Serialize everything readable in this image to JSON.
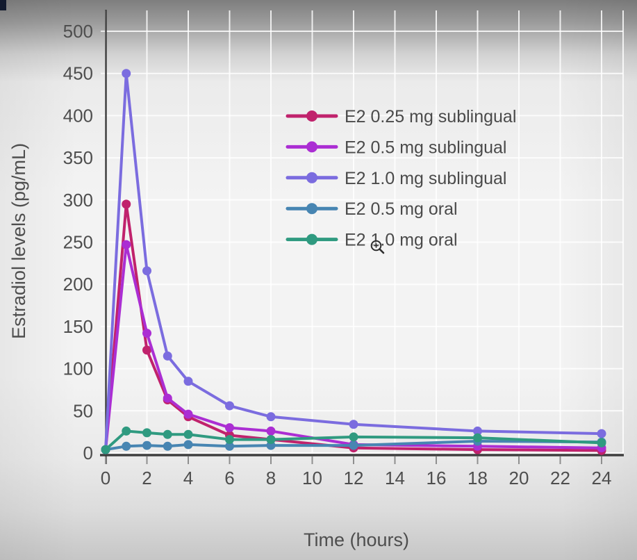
{
  "chart_data": {
    "type": "line",
    "title": "",
    "xlabel": "Time (hours)",
    "ylabel": "Estradiol levels (pg/mL)",
    "x": [
      0,
      1,
      2,
      3,
      4,
      6,
      8,
      12,
      18,
      24
    ],
    "x_ticks": [
      0,
      2,
      4,
      6,
      8,
      10,
      12,
      14,
      16,
      18,
      20,
      22,
      24
    ],
    "y_ticks": [
      0,
      50,
      100,
      150,
      200,
      250,
      300,
      350,
      400,
      450,
      500
    ],
    "xlim": [
      0,
      25
    ],
    "ylim": [
      0,
      500
    ],
    "grid": true,
    "grid_color": "#ffffff",
    "axis_color": "#3f3f3f",
    "text_color": "#4e4e4e",
    "legend_position": "upper-right-inside",
    "series": [
      {
        "name": "E2 0.25 mg sublingual",
        "color": "#c0226c",
        "values": [
          4,
          295,
          122,
          63,
          43,
          21,
          16,
          6,
          4,
          3
        ]
      },
      {
        "name": "E2 0.5 mg sublingual",
        "color": "#ab2ed3",
        "values": [
          4,
          247,
          142,
          65,
          46,
          30,
          26,
          10,
          8,
          6
        ]
      },
      {
        "name": "E2 1.0 mg sublingual",
        "color": "#7b6cdf",
        "values": [
          4,
          450,
          216,
          115,
          85,
          56,
          43,
          34,
          26,
          23
        ]
      },
      {
        "name": "E2 0.5 mg oral",
        "color": "#4785b2",
        "values": [
          4,
          8,
          9,
          8,
          10,
          8,
          9,
          9,
          14,
          13
        ]
      },
      {
        "name": "E2 1.0 mg oral",
        "color": "#2f9a80",
        "values": [
          4,
          26,
          24,
          22,
          22,
          16,
          16,
          19,
          18,
          12
        ]
      }
    ]
  },
  "overlay": {
    "cursor_icon": "zoom-in-magnifier"
  }
}
